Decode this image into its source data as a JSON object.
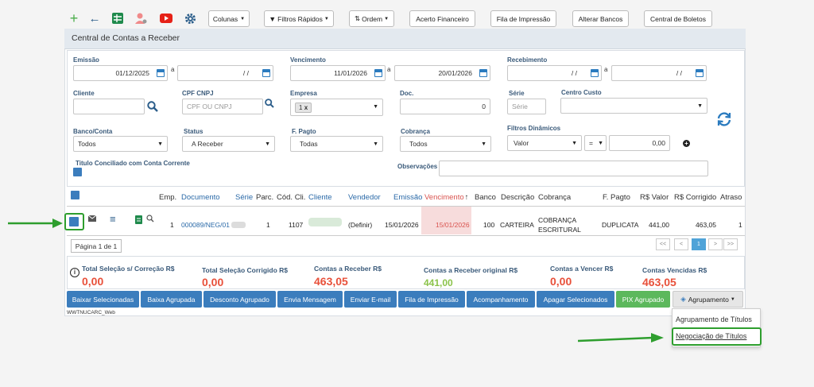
{
  "toolbar": {
    "colunas": "Colunas",
    "filtros_rapidos": "Filtros Rápidos",
    "ordem": "Ordem",
    "acerto": "Acerto Financeiro",
    "fila": "Fila de Impressão",
    "alterar_bancos": "Alterar Bancos",
    "central_boletos": "Central de Boletos"
  },
  "page": {
    "title": "Central de Contas a Receber"
  },
  "filters": {
    "emissao_label": "Emissão",
    "emissao_from": "01/12/2025",
    "emissao_to": "/ /",
    "a": "a",
    "vencimento_label": "Vencimento",
    "vencimento_from": "11/01/2026",
    "vencimento_to": "20/01/2026",
    "recebimento_label": "Recebimento",
    "recebimento_from": "/ /",
    "recebimento_to": "/ /",
    "cliente_label": "Cliente",
    "cpf_label": "CPF CNPJ",
    "cpf_placeholder": "CPF OU CNPJ",
    "empresa_label": "Empresa",
    "empresa_tag": "1",
    "doc_label": "Doc.",
    "doc_value": "0",
    "serie_label": "Série",
    "serie_placeholder": "Série",
    "centro_label": "Centro Custo",
    "banco_label": "Banco/Conta",
    "banco_value": "Todos",
    "status_label": "Status",
    "status_value": "A Receber",
    "fpagto_label": "F. Pagto",
    "fpagto_value": "Todas",
    "cobranca_label": "Cobrança",
    "cobranca_value": "Todos",
    "dinamicos_label": "Filtros Dinâmicos",
    "dinamicos_field": "Valor",
    "dinamicos_op": "=",
    "dinamicos_value": "0,00",
    "conciliado_label": "Titulo Conciliado com Conta Corrente",
    "obs_label": "Observações"
  },
  "table": {
    "headers": {
      "emp": "Emp.",
      "documento": "Documento",
      "serie": "Série",
      "parc": "Parc.",
      "cod": "Cód. Cli.",
      "cliente": "Cliente",
      "vendedor": "Vendedor",
      "emissao": "Emissão",
      "vencimento": "Vencimento",
      "banco": "Banco",
      "descricao": "Descrição",
      "cobranca": "Cobrança",
      "fpagto": "F. Pagto",
      "valor": "R$ Valor",
      "corrigido": "R$ Corrigido",
      "atraso": "Atraso"
    },
    "row": {
      "emp": "1",
      "documento": "000089/NEG/01",
      "parc": "1",
      "cod": "1107",
      "vendedor": "(Definir)",
      "emissao": "15/01/2026",
      "vencimento": "15/01/2026",
      "banco": "100",
      "descricao": "CARTEIRA",
      "cobranca_1": "COBRANÇA",
      "cobranca_2": "ESCRITURAL",
      "fpagto": "DUPLICATA",
      "valor": "441,00",
      "corrigido": "463,05",
      "atraso": "1"
    }
  },
  "pagination": {
    "label": "Página 1 de 1",
    "first": "<<",
    "prev": "<",
    "current": "1",
    "next": ">",
    "last": ">>"
  },
  "totals": [
    {
      "label": "Total Seleção s/ Correção R$",
      "value": "0,00",
      "color": "#e8503a"
    },
    {
      "label": "Total Seleção Corrigido R$",
      "value": "0,00",
      "color": "#e8503a"
    },
    {
      "label": "Contas a Receber R$",
      "value": "463,05",
      "color": "#e8503a"
    },
    {
      "label": "Contas a Receber original R$",
      "value": "441,00",
      "color": "#8bc34a"
    },
    {
      "label": "Contas a Vencer R$",
      "value": "0,00",
      "color": "#e8503a"
    },
    {
      "label": "Contas Vencidas R$",
      "value": "463,05",
      "color": "#e8503a"
    }
  ],
  "actions": {
    "baixar": "Baixar Selecionadas",
    "baixa_agrupada": "Baixa Agrupada",
    "desconto": "Desconto Agrupado",
    "envia_msg": "Envia Mensagem",
    "email": "Enviar E-mail",
    "fila": "Fila de Impressão",
    "acompanhamento": "Acompanhamento",
    "apagar": "Apagar Selecionados",
    "pix": "PIX Agrupado",
    "agrupamento": "Agrupamento"
  },
  "dropdown": {
    "item1": "Agrupamento de Títulos",
    "item2": "Negociação de Títulos"
  },
  "footer": {
    "program": "WWTNUCARC_Web"
  },
  "colors": {
    "primary": "#3b7dbd",
    "green": "#5cb85c",
    "highlight": "#2e9e2e",
    "danger": "#e8503a"
  }
}
